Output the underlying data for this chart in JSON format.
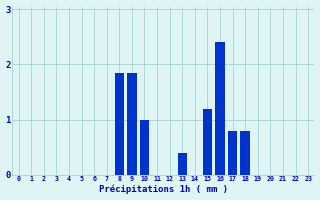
{
  "hours": [
    0,
    1,
    2,
    3,
    4,
    5,
    6,
    7,
    8,
    9,
    10,
    11,
    12,
    13,
    14,
    15,
    16,
    17,
    18,
    19,
    20,
    21,
    22,
    23
  ],
  "values": [
    0,
    0,
    0,
    0,
    0,
    0,
    0,
    0,
    1.85,
    1.85,
    1.0,
    0,
    0,
    0.4,
    0,
    1.2,
    2.4,
    0.8,
    0.8,
    0,
    0,
    0,
    0,
    0
  ],
  "bar_color": "#0033cc",
  "background_color": "#dff5f5",
  "grid_color": "#99cccc",
  "xlabel": "Précipitations 1h ( mm )",
  "ylim": [
    0,
    3.05
  ],
  "yticks": [
    0,
    1,
    2,
    3
  ],
  "xlim": [
    -0.5,
    23.5
  ],
  "label_color": "#0000cc",
  "tick_color": "#0000cc",
  "figsize": [
    3.2,
    2.0
  ],
  "dpi": 100
}
